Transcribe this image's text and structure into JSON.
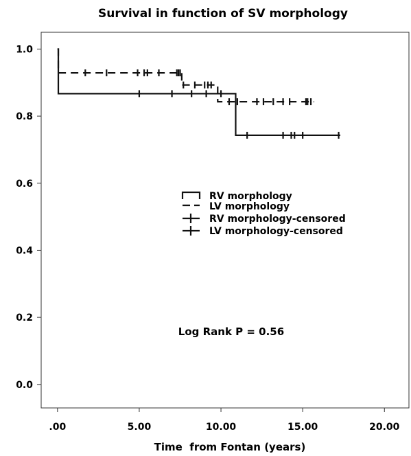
{
  "chart_data": {
    "type": "line",
    "subtype": "kaplan-meier",
    "title": "Survival in function of SV morphology",
    "xlabel": "Time  from Fontan (years)",
    "ylabel": "",
    "xlim": [
      -1,
      21.5
    ],
    "ylim": [
      -0.07,
      1.05
    ],
    "x_ticks": [
      0,
      5,
      10,
      15,
      20
    ],
    "x_tick_labels": [
      ".00",
      "5.00",
      "10.00",
      "15.00",
      "20.00"
    ],
    "y_ticks": [
      0,
      0.2,
      0.4,
      0.6,
      0.8,
      1.0
    ],
    "y_tick_labels": [
      "0.0",
      "0.2",
      "0.4",
      "0.6",
      "0.8",
      "1.0"
    ],
    "grid": false,
    "legend_position": "center",
    "legend": [
      {
        "label": "RV morphology",
        "style": "solid-step"
      },
      {
        "label": "LV morphology",
        "style": "dashed-step"
      },
      {
        "label": "RV morphology-censored",
        "style": "censor-solid"
      },
      {
        "label": "LV morphology-censored",
        "style": "censor-dashed"
      }
    ],
    "annotation": "Log Rank P = 0.56",
    "series": [
      {
        "name": "RV morphology",
        "dash": "solid",
        "steps": [
          [
            0,
            1.0
          ],
          [
            0.05,
            0.867
          ],
          [
            10.9,
            0.743
          ]
        ],
        "end_x": 17.3,
        "censored": [
          5.0,
          7.0,
          8.2,
          9.1,
          10.0,
          11.6,
          13.8,
          14.3,
          14.5,
          15.0,
          17.2
        ]
      },
      {
        "name": "LV morphology",
        "dash": "dashed",
        "steps": [
          [
            0,
            1.0
          ],
          [
            0.05,
            0.929
          ],
          [
            7.6,
            0.893
          ],
          [
            9.8,
            0.843
          ]
        ],
        "end_x": 15.7,
        "censored": [
          1.7,
          3.0,
          4.9,
          5.3,
          5.5,
          6.2,
          7.3,
          7.4,
          7.5,
          7.7,
          8.4,
          9.0,
          9.2,
          9.4,
          10.5,
          11.0,
          12.2,
          12.6,
          13.2,
          13.8,
          14.2,
          15.2,
          15.3,
          15.5
        ]
      }
    ]
  }
}
